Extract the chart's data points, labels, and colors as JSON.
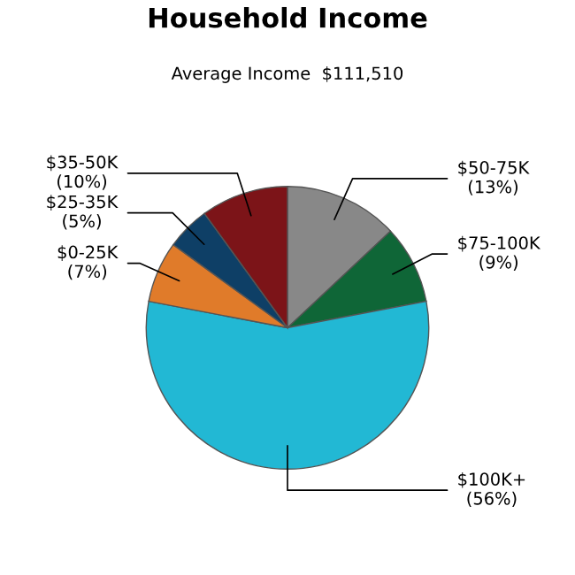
{
  "chart_data": {
    "type": "pie",
    "title": "Household Income",
    "subtitle": "Average Income  $111,510",
    "categories": [
      "$50-75K",
      "$75-100K",
      "$100K+",
      "$0-25K",
      "$25-35K",
      "$35-50K"
    ],
    "values": [
      13,
      9,
      56,
      7,
      5,
      10
    ],
    "value_labels": [
      "(13%)",
      "(9%)",
      "(56%)",
      "(7%)",
      "(5%)",
      "(10%)"
    ],
    "colors": [
      "#888888",
      "#0f6637",
      "#22b8d4",
      "#e07b2a",
      "#0e3f66",
      "#7c1418"
    ]
  }
}
